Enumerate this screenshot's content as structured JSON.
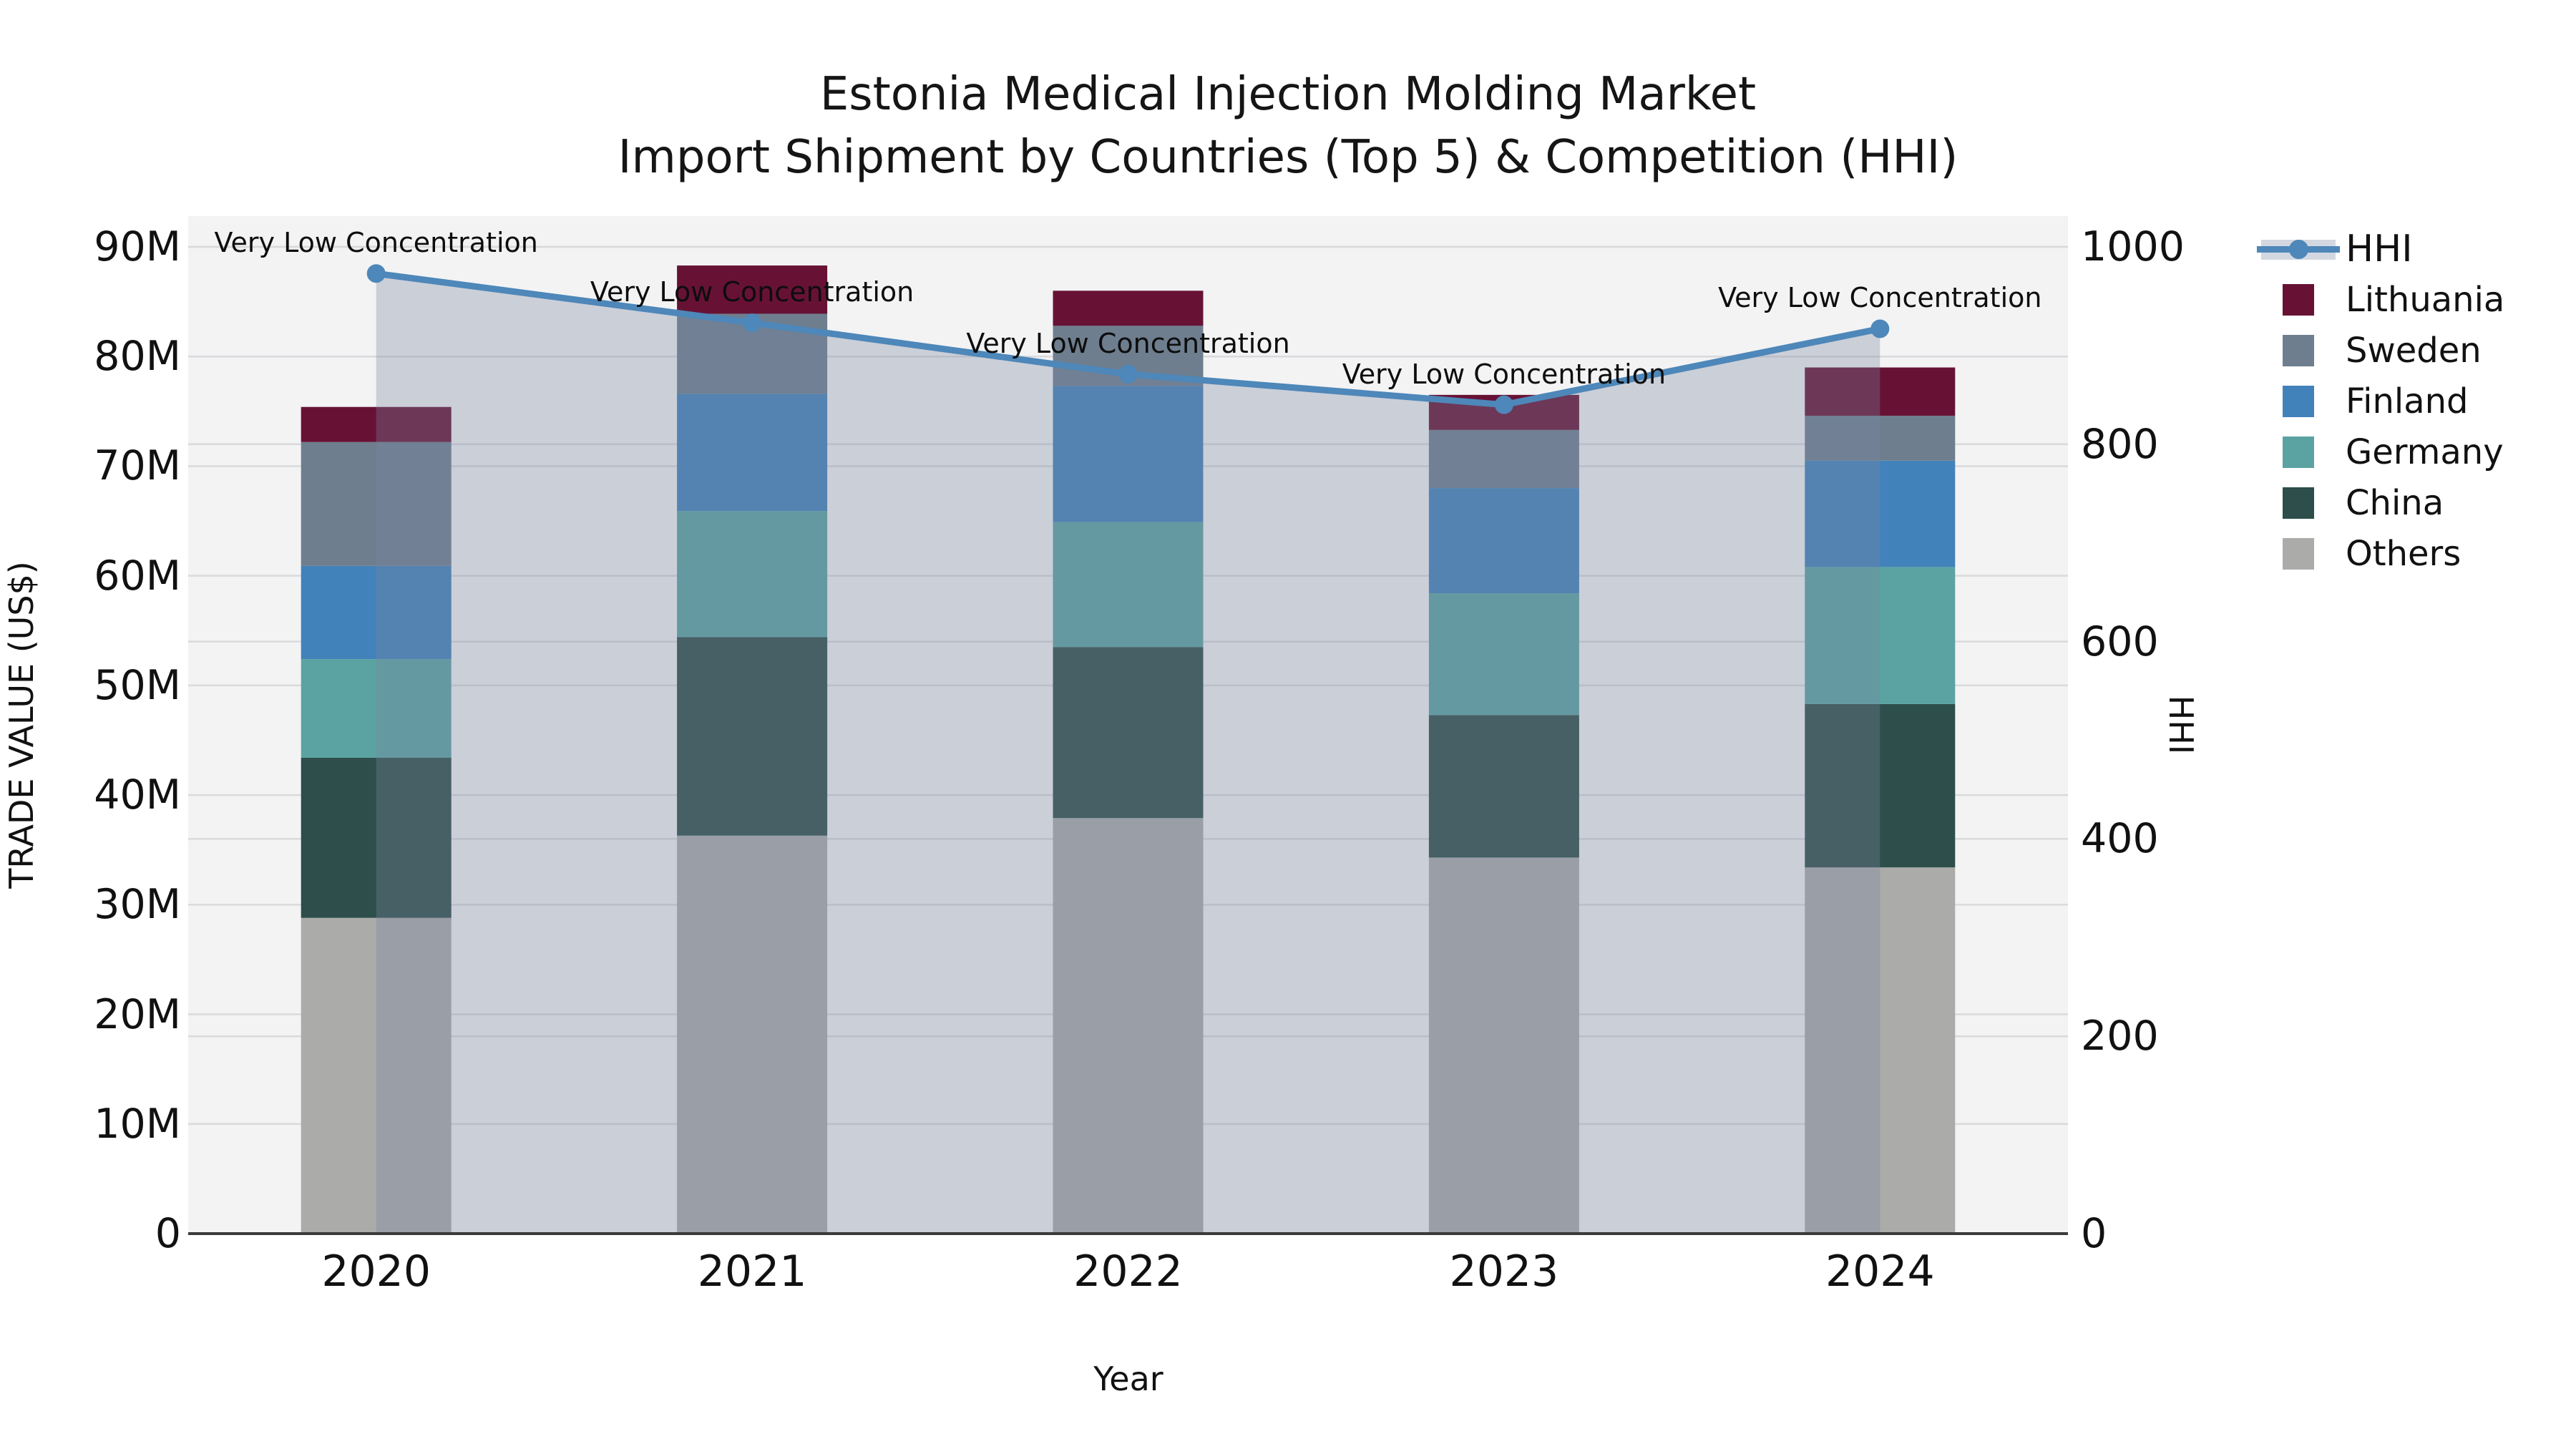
{
  "title": {
    "line1": "Estonia Medical Injection Molding Market",
    "line2": "Import Shipment by Countries (Top 5) & Competition (HHI)"
  },
  "axes": {
    "x_label": "Year",
    "y_left_label": "TRADE VALUE (US$)",
    "y_right_label": "HHI",
    "y_left_ticks": {
      "values": [
        0,
        10,
        20,
        30,
        40,
        50,
        60,
        70,
        80,
        90
      ],
      "labels": [
        "0",
        "10M",
        "20M",
        "30M",
        "40M",
        "50M",
        "60M",
        "70M",
        "80M",
        "90M"
      ]
    },
    "y_right_ticks": {
      "values": [
        0,
        200,
        400,
        600,
        800,
        1000
      ],
      "labels": [
        "0",
        "200",
        "400",
        "600",
        "800",
        "1000"
      ]
    }
  },
  "legend": {
    "entries": [
      {
        "label": "HHI",
        "type": "line",
        "color": "#4E87B9",
        "band": "rgba(120,135,162,0.33)"
      },
      {
        "label": "Lithuania",
        "type": "swatch",
        "color": "#671235"
      },
      {
        "label": "Sweden",
        "type": "swatch",
        "color": "#6E7E8E"
      },
      {
        "label": "Finland",
        "type": "swatch",
        "color": "#4282BA"
      },
      {
        "label": "Germany",
        "type": "swatch",
        "color": "#5BA3A2"
      },
      {
        "label": "China",
        "type": "swatch",
        "color": "#2D4E4A"
      },
      {
        "label": "Others",
        "type": "swatch",
        "color": "#ABABA9"
      }
    ]
  },
  "chart_data": {
    "type": "combo-stacked-bar-line",
    "title": "Estonia Medical Injection Molding Market — Import Shipment by Countries (Top 5) & Competition (HHI)",
    "categories": [
      "2020",
      "2021",
      "2022",
      "2023",
      "2024"
    ],
    "xlabel": "Year",
    "ylabel_left": "TRADE VALUE (US$)",
    "ylabel_right": "HHI",
    "unit_left": "million US$",
    "ylim_left": [
      0,
      92.8
    ],
    "ylim_right": [
      0,
      1031
    ],
    "grid": true,
    "legend_position": "right",
    "bar_series_bottom_to_top": [
      {
        "name": "Others",
        "color": "#ABABA9",
        "values": [
          28.8,
          36.3,
          37.9,
          34.3,
          33.4
        ]
      },
      {
        "name": "China",
        "color": "#2D4E4A",
        "values": [
          14.6,
          18.1,
          15.6,
          13.0,
          14.9
        ]
      },
      {
        "name": "Germany",
        "color": "#5BA3A2",
        "values": [
          9.0,
          11.5,
          11.4,
          11.1,
          12.5
        ]
      },
      {
        "name": "Finland",
        "color": "#4282BA",
        "values": [
          8.5,
          10.7,
          12.4,
          9.6,
          9.7
        ]
      },
      {
        "name": "Sweden",
        "color": "#6E7E8E",
        "values": [
          11.3,
          7.3,
          5.5,
          5.3,
          4.1
        ]
      },
      {
        "name": "Lithuania",
        "color": "#671235",
        "values": [
          3.2,
          4.4,
          3.2,
          3.2,
          4.4
        ]
      }
    ],
    "bar_totals": [
      75.4,
      88.3,
      86.0,
      76.5,
      79.0
    ],
    "line_series": {
      "name": "HHI",
      "axis": "right",
      "color": "#4E87B9",
      "area_fill": "rgba(120,135,162,0.33)",
      "values": [
        973,
        923,
        871,
        840,
        917
      ]
    },
    "annotations": [
      {
        "text": "Very Low Concentration",
        "category": "2020"
      },
      {
        "text": "Very Low Concentration",
        "category": "2021"
      },
      {
        "text": "Very Low Concentration",
        "category": "2022"
      },
      {
        "text": "Very Low Concentration",
        "category": "2023"
      },
      {
        "text": "Very Low Concentration",
        "category": "2024"
      }
    ],
    "style": {
      "plot_bg": "#F3F3F4",
      "grid_color": "#D9DADC",
      "axis_line_color": "#3A3A3A"
    }
  }
}
